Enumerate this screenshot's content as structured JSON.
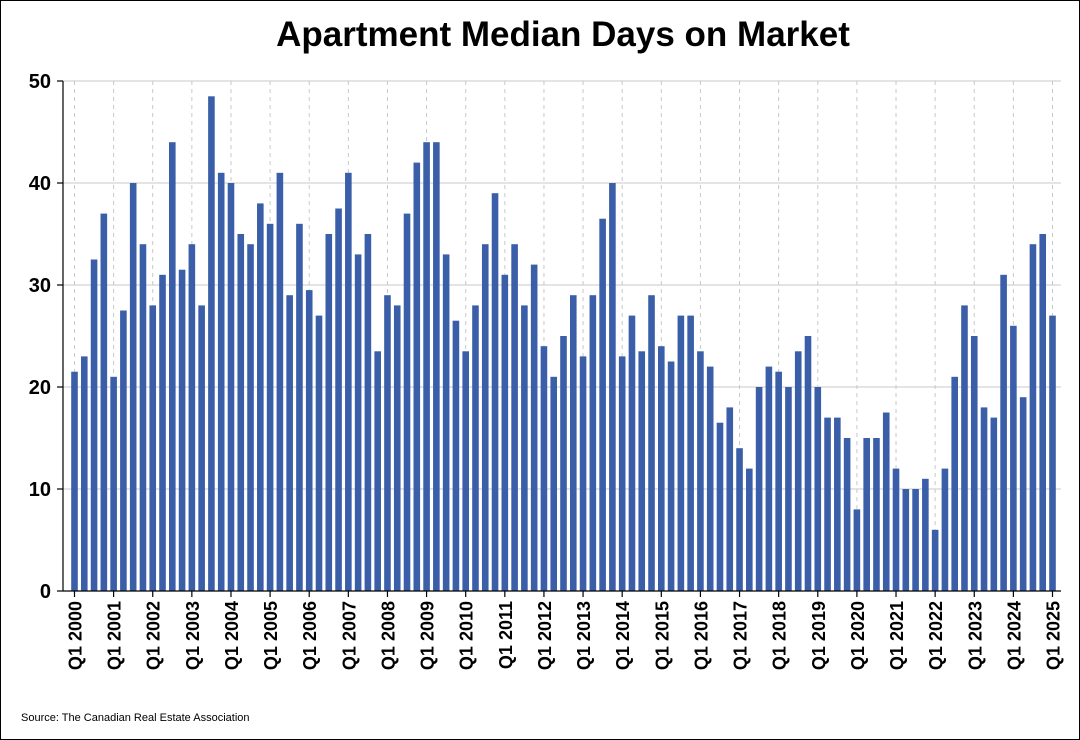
{
  "chart_data": {
    "type": "bar",
    "title": "Apartment Median Days on Market",
    "source": "Source: The Canadian Real Estate Association",
    "xlabel": "",
    "ylabel": "",
    "ylim": [
      0,
      50
    ],
    "y_ticks": [
      0,
      10,
      20,
      30,
      40,
      50
    ],
    "x_tick_labels": [
      "Q1 2000",
      "Q1 2001",
      "Q1 2002",
      "Q1 2003",
      "Q1 2004",
      "Q1 2005",
      "Q1 2006",
      "Q1 2007",
      "Q1 2008",
      "Q1 2009",
      "Q1 2010",
      "Q1 2011",
      "Q1 2012",
      "Q1 2013",
      "Q1 2014",
      "Q1 2015",
      "Q1 2016",
      "Q1 2017",
      "Q1 2018",
      "Q1 2019",
      "Q1 2020",
      "Q1 2021",
      "Q1 2022",
      "Q1 2023",
      "Q1 2024",
      "Q1 2025"
    ],
    "first_period": "Q1 2000",
    "values": [
      21.5,
      23,
      32.5,
      37,
      21,
      27.5,
      40,
      34,
      28,
      31,
      44,
      31.5,
      34,
      28,
      48.5,
      41,
      40,
      35,
      34,
      38,
      36,
      41,
      29,
      36,
      29.5,
      27,
      35,
      37.5,
      41,
      33,
      35,
      23.5,
      29,
      28,
      37,
      42,
      44,
      44,
      33,
      26.5,
      23.5,
      28,
      34,
      39,
      31,
      34,
      28,
      32,
      24,
      21,
      25,
      29,
      23,
      29,
      36.5,
      40,
      23,
      27,
      23.5,
      29,
      24,
      22.5,
      27,
      27,
      23.5,
      22,
      16.5,
      18,
      14,
      12,
      20,
      22,
      21.5,
      20,
      23.5,
      25,
      20,
      17,
      17,
      15,
      8,
      15,
      15,
      17.5,
      12,
      10,
      10,
      11,
      6,
      12,
      21,
      28,
      25,
      18,
      17,
      31,
      26,
      19,
      34,
      35,
      27
    ],
    "bar_color": "#3a5fa8",
    "grid": "horizontal solid, vertical dashed at each Q1"
  }
}
